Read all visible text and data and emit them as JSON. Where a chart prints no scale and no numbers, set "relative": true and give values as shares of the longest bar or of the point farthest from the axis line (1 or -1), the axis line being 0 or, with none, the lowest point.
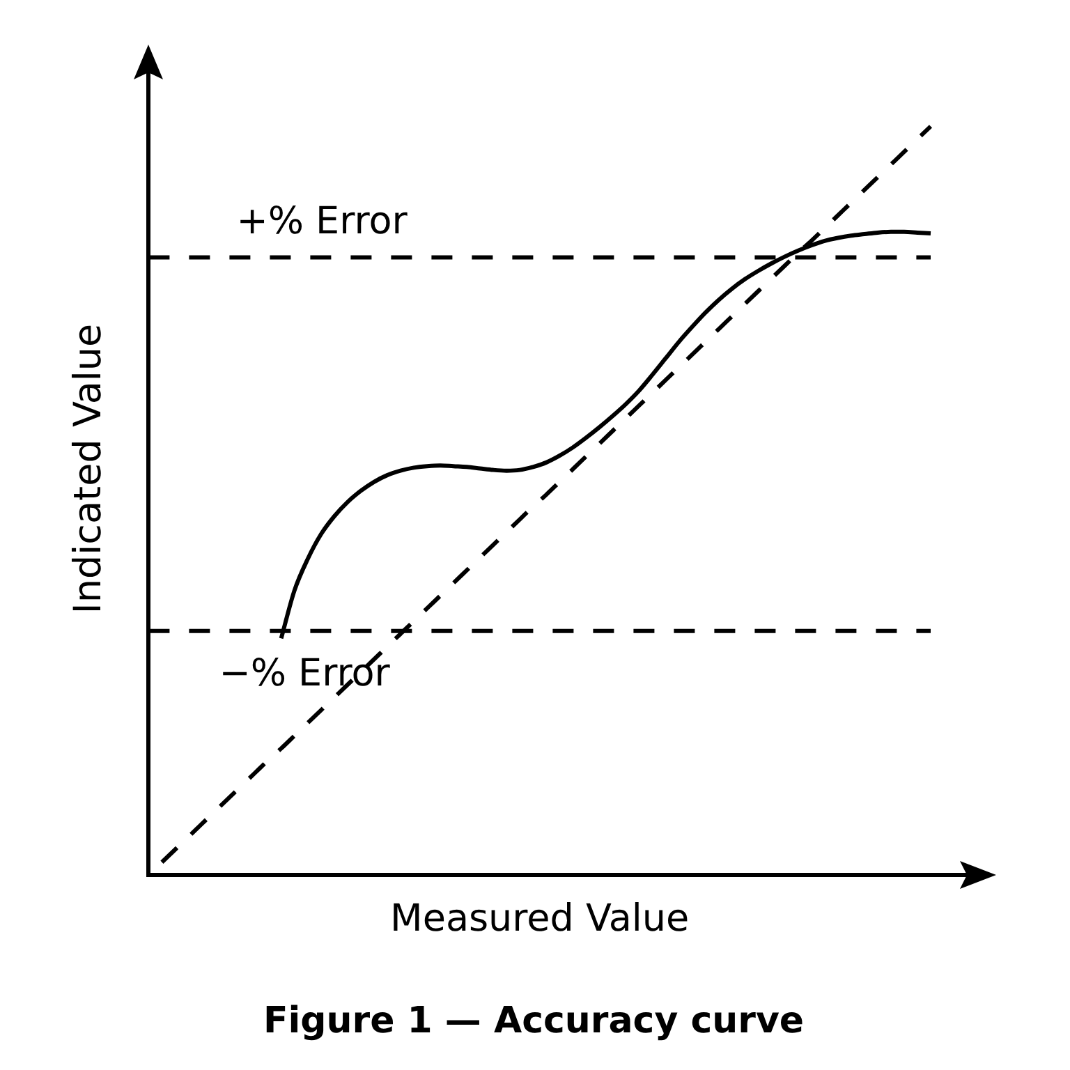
{
  "chart_data": {
    "type": "line",
    "title": "Figure 1 — Accuracy curve",
    "xlabel": "Measured Value",
    "ylabel": "Indicated Value",
    "relative": true,
    "legend": false,
    "grid": false,
    "marker": "none",
    "tick_labels": false,
    "categories": [
      null,
      null,
      null,
      null,
      null,
      null,
      null,
      null,
      null,
      null,
      null,
      null,
      null,
      null,
      null,
      null,
      null,
      null,
      null,
      null,
      null,
      null,
      null,
      null,
      null,
      null,
      null,
      null,
      null,
      null,
      null,
      null,
      null,
      null,
      null,
      null,
      null,
      null,
      null,
      null,
      null,
      null,
      null,
      null,
      null,
      null,
      null,
      null,
      null,
      null,
      null,
      null,
      null,
      null,
      null,
      null,
      null,
      null,
      null,
      null
    ],
    "series": [
      {
        "color": "#000000",
        "line_style": "dashed",
        "values": [
          null,
          0.017,
          0.034,
          0.051,
          0.068,
          0.085,
          0.102,
          0.119,
          0.136,
          0.153,
          0.169,
          0.186,
          0.203,
          0.22,
          0.237,
          0.254,
          0.271,
          0.288,
          0.305,
          0.322,
          0.339,
          0.356,
          0.373,
          0.39,
          0.407,
          0.424,
          0.441,
          0.458,
          0.475,
          0.492,
          0.508,
          0.525,
          0.542,
          0.559,
          0.576,
          0.593,
          0.61,
          0.627,
          0.644,
          0.661,
          0.678,
          0.695,
          0.712,
          0.729,
          0.746,
          0.763,
          0.78,
          0.797,
          0.814,
          0.831,
          0.847,
          0.864,
          0.881,
          0.898,
          0.915,
          0.932,
          0.949,
          0.966,
          0.983,
          1
        ]
      },
      {
        "color": "#000000",
        "line_style": "solid",
        "values": [
          null,
          null,
          null,
          null,
          null,
          null,
          null,
          null,
          null,
          null,
          0.316,
          0.38,
          0.422,
          0.455,
          0.479,
          0.498,
          0.513,
          0.525,
          0.534,
          0.54,
          0.544,
          0.546,
          0.547,
          0.546,
          0.545,
          0.543,
          0.541,
          0.54,
          0.541,
          0.545,
          0.551,
          0.56,
          0.571,
          0.584,
          0.598,
          0.613,
          0.629,
          0.647,
          0.668,
          0.69,
          0.712,
          0.732,
          0.751,
          0.768,
          0.783,
          0.796,
          0.807,
          0.817,
          0.826,
          0.834,
          0.841,
          0.847,
          0.851,
          0.854,
          0.856,
          0.858,
          0.859,
          0.859,
          0.858,
          0.857
        ]
      }
    ],
    "ref_lines": [
      {
        "axis": "y",
        "value": 0.825,
        "label": "+% Error",
        "color": "#000000",
        "line_style": "dashed"
      },
      {
        "axis": "y",
        "value": 0.326,
        "label": "−% Error",
        "color": "#000000",
        "line_style": "dashed"
      }
    ]
  }
}
